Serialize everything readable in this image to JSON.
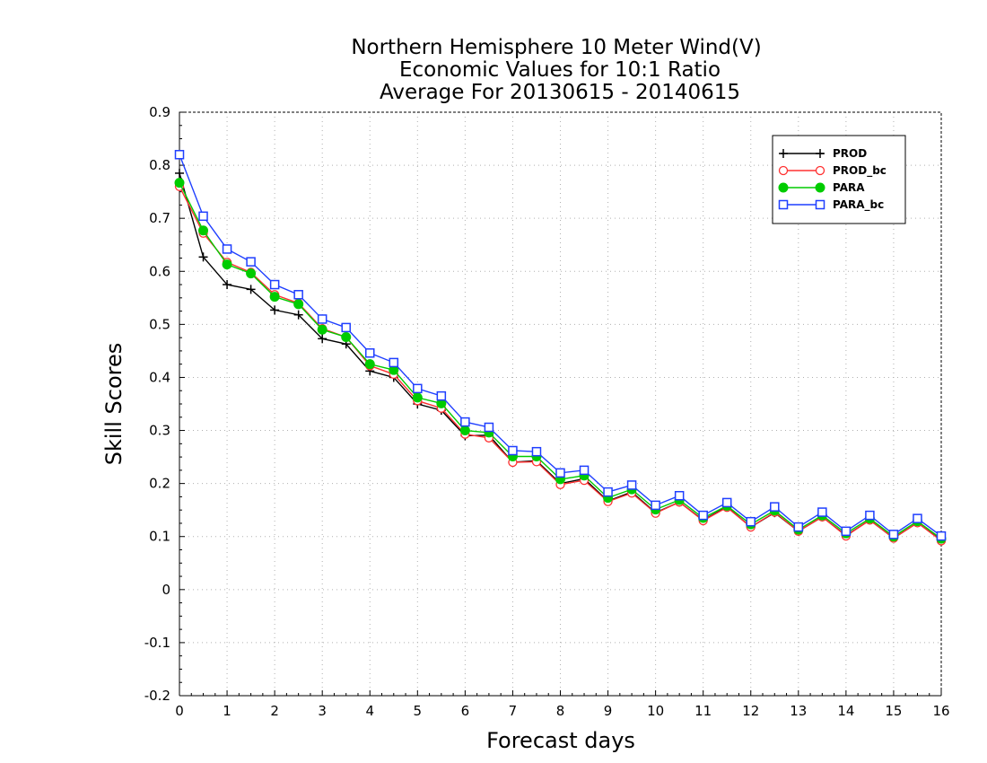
{
  "chart_data": {
    "type": "line",
    "title": [
      "Northern Hemisphere 10 Meter Wind(V)",
      "Economic Values for 10:1 Ratio",
      "Average For 20130615 - 20140615"
    ],
    "xlabel": "Forecast days",
    "ylabel": "Skill Scores",
    "xlim": [
      0,
      16
    ],
    "ylim": [
      -0.2,
      0.9
    ],
    "xticks": [
      0,
      1,
      2,
      3,
      4,
      5,
      6,
      7,
      8,
      9,
      10,
      11,
      12,
      13,
      14,
      15,
      16
    ],
    "xtick_labels": [
      "0",
      "1",
      "2",
      "3",
      "4",
      "5",
      "6",
      "7",
      "8",
      "9",
      "10",
      "11",
      "12",
      "13",
      "14",
      "15",
      "16"
    ],
    "yticks": [
      -0.2,
      -0.1,
      0,
      0.1,
      0.2,
      0.3,
      0.4,
      0.5,
      0.6,
      0.7,
      0.8,
      0.9
    ],
    "ytick_labels": [
      "-0.2",
      "-0.1",
      "0",
      "0.1",
      "0.2",
      "0.3",
      "0.4",
      "0.5",
      "0.6",
      "0.7",
      "0.8",
      "0.9"
    ],
    "grid": true,
    "legend_position": "top-right",
    "x": [
      0,
      0.5,
      1,
      1.5,
      2,
      2.5,
      3,
      3.5,
      4,
      4.5,
      5,
      5.5,
      6,
      6.5,
      7,
      7.5,
      8,
      8.5,
      9,
      9.5,
      10,
      10.5,
      11,
      11.5,
      12,
      12.5,
      13,
      13.5,
      14,
      14.5,
      15,
      15.5,
      16
    ],
    "series": [
      {
        "name": "PROD",
        "color": "#000000",
        "marker": "plus",
        "values": [
          0.785,
          0.627,
          0.575,
          0.566,
          0.527,
          0.518,
          0.473,
          0.463,
          0.412,
          0.4,
          0.35,
          0.338,
          0.29,
          0.291,
          0.24,
          0.243,
          0.2,
          0.209,
          0.167,
          0.184,
          0.145,
          0.165,
          0.131,
          0.156,
          0.118,
          0.145,
          0.11,
          0.137,
          0.102,
          0.131,
          0.097,
          0.126,
          0.093
        ]
      },
      {
        "name": "PROD_bc",
        "color": "#ff3030",
        "marker": "circle-open",
        "values": [
          0.76,
          0.672,
          0.617,
          0.598,
          0.556,
          0.54,
          0.492,
          0.476,
          0.422,
          0.406,
          0.356,
          0.342,
          0.293,
          0.286,
          0.24,
          0.241,
          0.198,
          0.206,
          0.166,
          0.182,
          0.144,
          0.165,
          0.13,
          0.155,
          0.118,
          0.146,
          0.11,
          0.137,
          0.101,
          0.131,
          0.097,
          0.126,
          0.092
        ]
      },
      {
        "name": "PARA",
        "color": "#00cc00",
        "marker": "circle-filled",
        "values": [
          0.767,
          0.677,
          0.613,
          0.596,
          0.552,
          0.538,
          0.49,
          0.476,
          0.425,
          0.414,
          0.362,
          0.351,
          0.3,
          0.296,
          0.251,
          0.251,
          0.208,
          0.215,
          0.173,
          0.189,
          0.151,
          0.169,
          0.135,
          0.158,
          0.123,
          0.149,
          0.113,
          0.14,
          0.106,
          0.134,
          0.1,
          0.129,
          0.096
        ]
      },
      {
        "name": "PARA_bc",
        "color": "#1f3fff",
        "marker": "square-open",
        "values": [
          0.82,
          0.704,
          0.642,
          0.618,
          0.575,
          0.556,
          0.51,
          0.494,
          0.446,
          0.428,
          0.379,
          0.365,
          0.316,
          0.306,
          0.262,
          0.26,
          0.22,
          0.225,
          0.184,
          0.197,
          0.159,
          0.177,
          0.14,
          0.164,
          0.128,
          0.156,
          0.118,
          0.146,
          0.11,
          0.14,
          0.104,
          0.134,
          0.101
        ]
      }
    ]
  }
}
